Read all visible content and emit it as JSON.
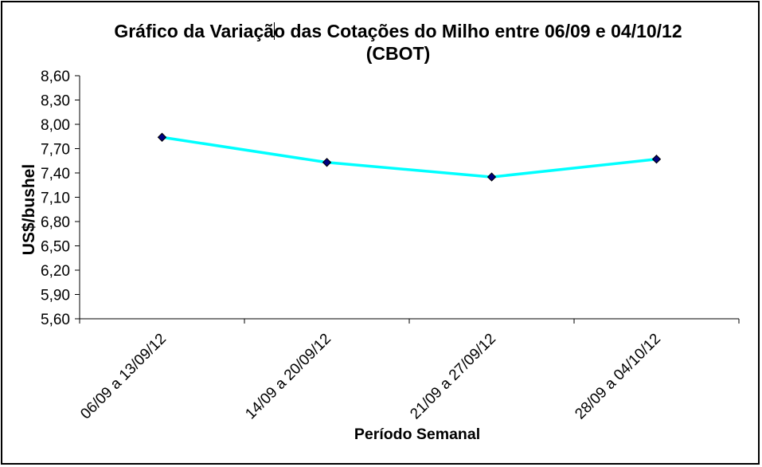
{
  "chart_data": {
    "type": "line",
    "title_lines": [
      "Gráfico da Variação das Cotações do Milho entre 06/09 e 04/10/12",
      "(CBOT)"
    ],
    "xlabel": "Período Semanal",
    "ylabel": "US$/bushel",
    "categories": [
      "06/09 a 13/09/12",
      "14/09 a 20/09/12",
      "21/09 a 27/09/12",
      "28/09 a 04/10/12"
    ],
    "series": [
      {
        "values": [
          7.84,
          7.53,
          7.35,
          7.57
        ],
        "color": "#00FFFF",
        "marker": "diamond",
        "marker_color": "#000080"
      }
    ],
    "ylim": [
      5.6,
      8.6
    ],
    "yticks": [
      5.6,
      5.9,
      6.2,
      6.5,
      6.8,
      7.1,
      7.4,
      7.7,
      8.0,
      8.3,
      8.6
    ],
    "ytick_labels": [
      "5,60",
      "5,90",
      "6,20",
      "6,50",
      "6,80",
      "7,10",
      "7,40",
      "7,70",
      "8,00",
      "8,30",
      "8,60"
    ],
    "grid": false,
    "legend": "none"
  }
}
